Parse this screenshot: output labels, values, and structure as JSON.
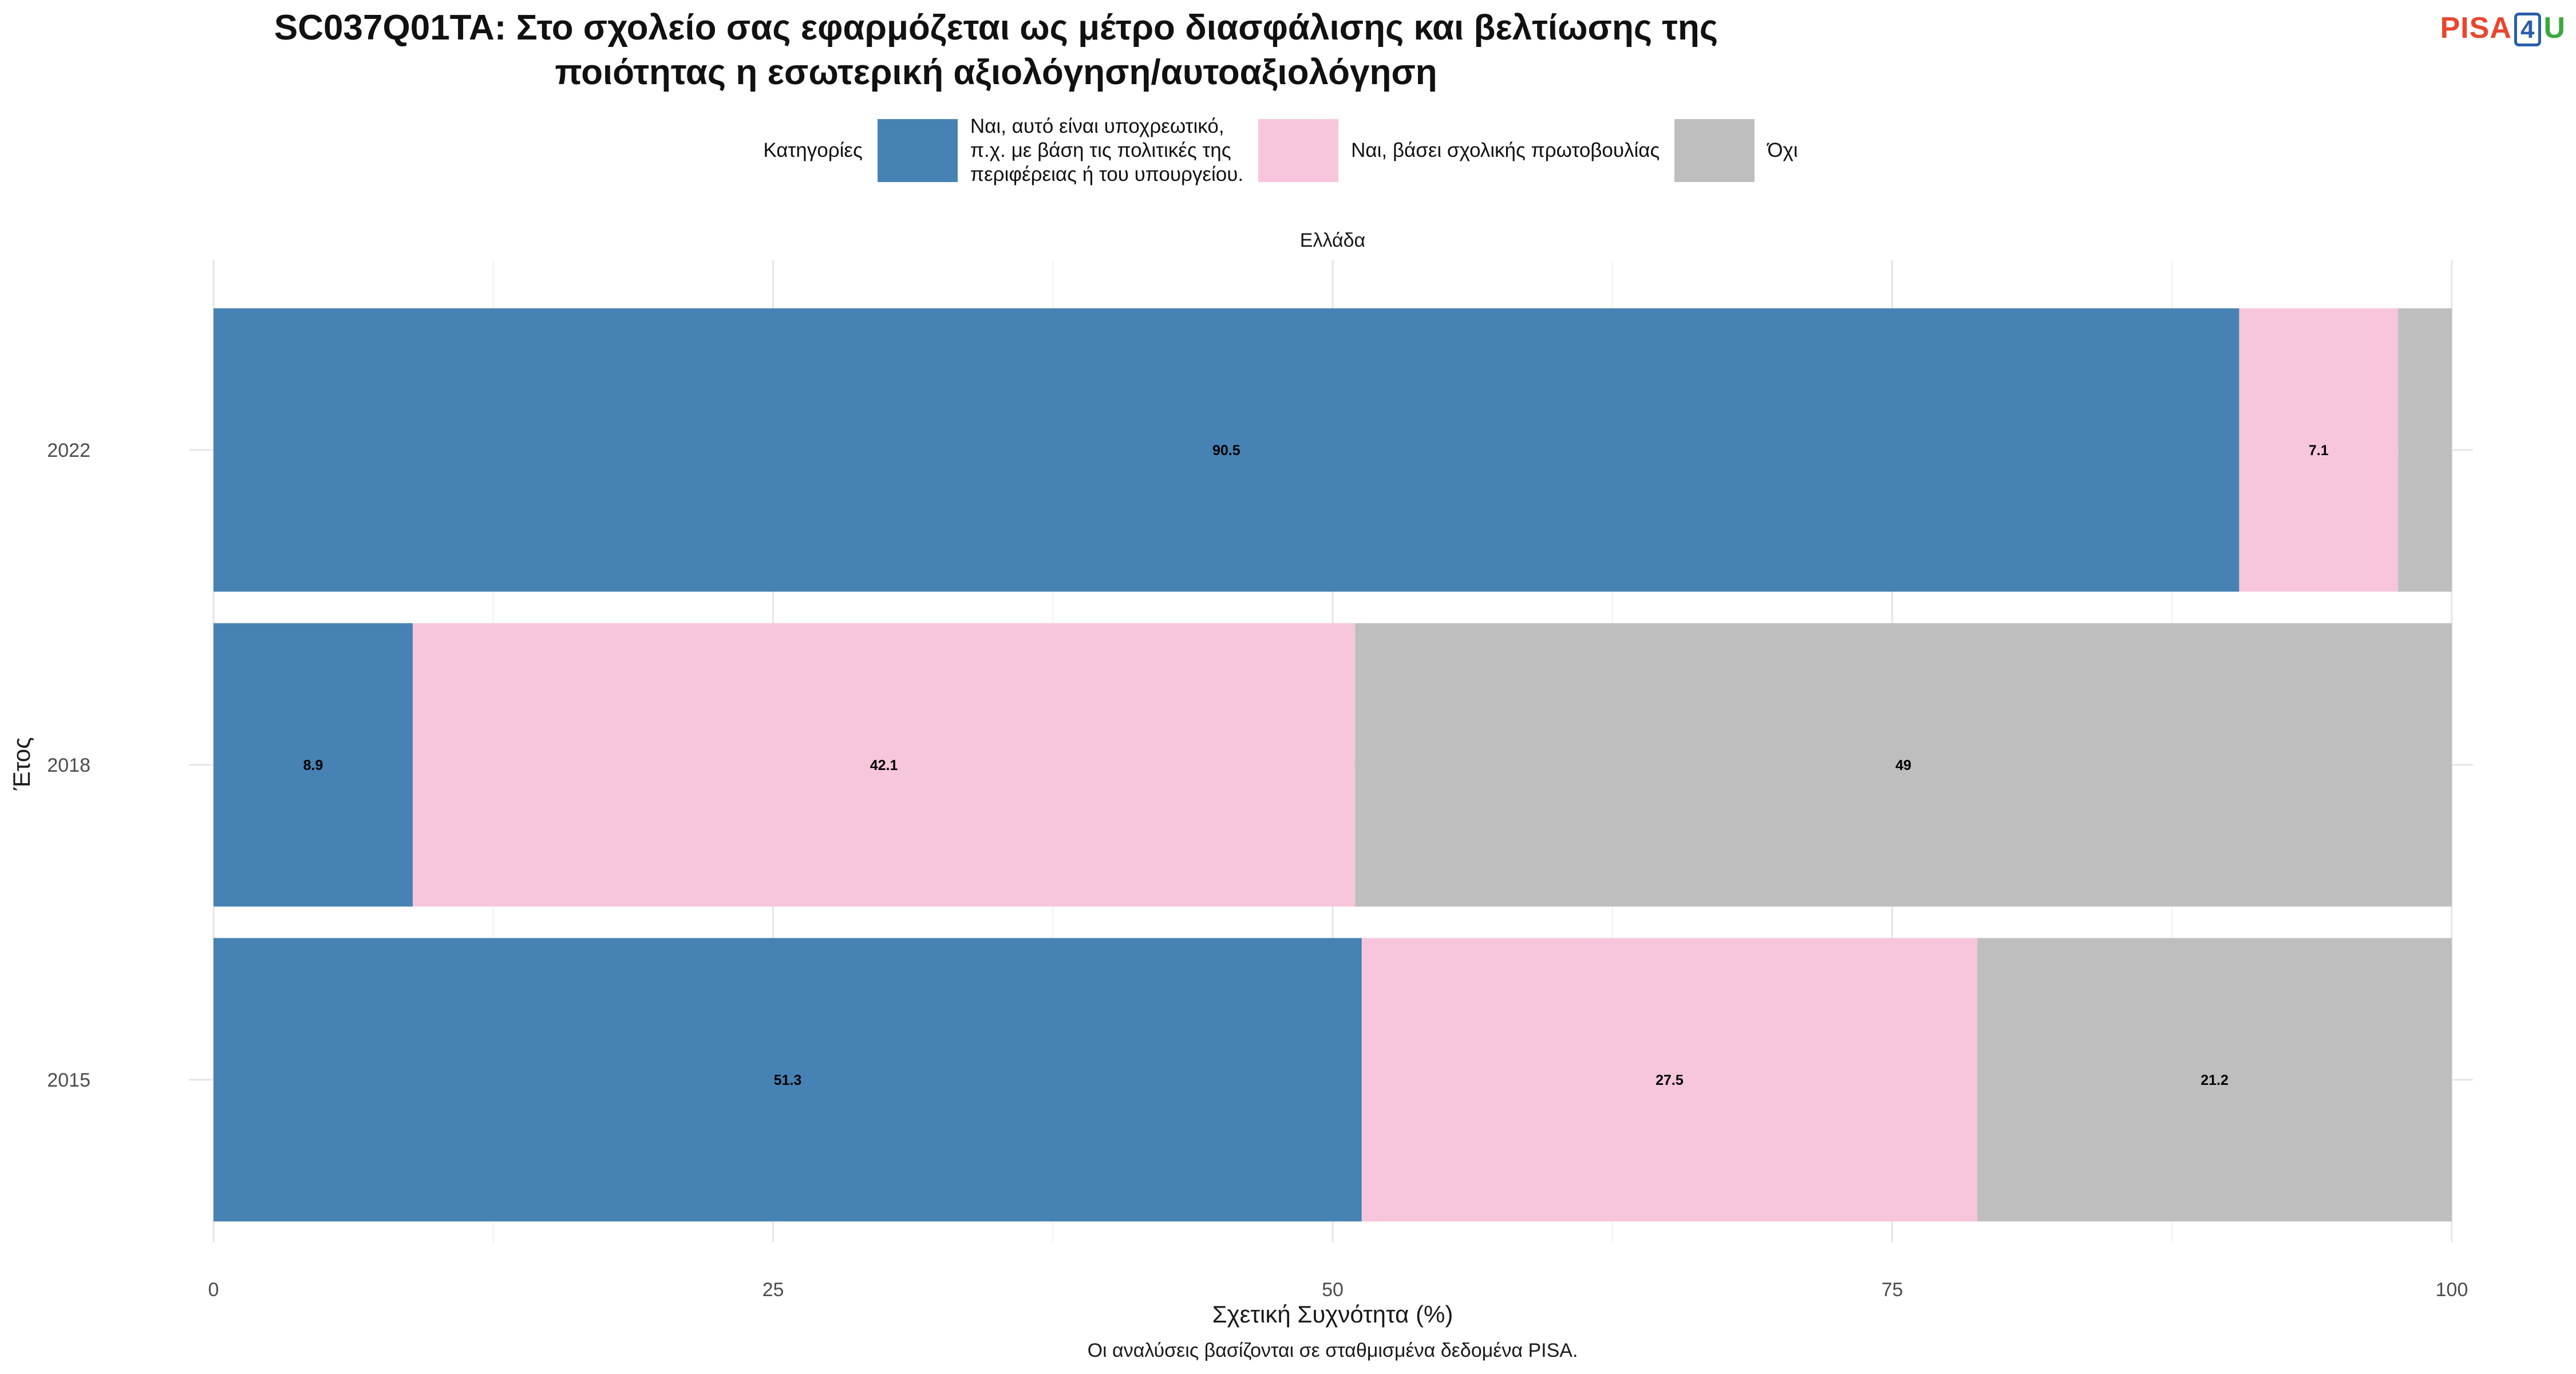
{
  "title_line1": "SC037Q01TA: Στο σχολείο σας εφαρμόζεται ως μέτρο διασφάλισης και βελτίωσης της",
  "title_line2": "ποιότητας η εσωτερική αξιολόγηση/αυτοαξιολόγηση",
  "logo": {
    "part1": "PISA",
    "part2": "4",
    "part3": "U"
  },
  "legend": {
    "title": "Κατηγορίες",
    "items": [
      {
        "lines": [
          "Ναι, αυτό είναι υποχρεωτικό,",
          "π.χ. με βάση τις πολιτικές της",
          "περιφέρειας ή του υπουργείου."
        ],
        "color": "#4682b4"
      },
      {
        "lines": [
          "Ναι, βάσει σχολικής πρωτοβουλίας"
        ],
        "color": "#f7c6dc"
      },
      {
        "lines": [
          "Όχι"
        ],
        "color": "#bebebe"
      }
    ]
  },
  "caption": "Οι αναλύσεις βασίζονται σε σταθμισμένα δεδομένα PISA.",
  "chart_data": {
    "type": "bar",
    "orientation": "horizontal",
    "stacked": true,
    "facet_label": "Ελλάδα",
    "categories": [
      "2022",
      "2018",
      "2015"
    ],
    "series": [
      {
        "name": "Ναι, αυτό είναι υποχρεωτικό, π.χ. με βάση τις πολιτικές της περιφέρειας ή του υπουργείου.",
        "color": "#4682b4",
        "values": [
          90.5,
          8.9,
          51.3
        ],
        "labels": [
          "90.5",
          "8.9",
          "51.3"
        ]
      },
      {
        "name": "Ναι, βάσει σχολικής πρωτοβουλίας",
        "color": "#f7c6dc",
        "values": [
          7.1,
          42.1,
          27.5
        ],
        "labels": [
          "7.1",
          "42.1",
          "27.5"
        ]
      },
      {
        "name": "Όχι",
        "color": "#bebebe",
        "values": [
          2.4,
          49.0,
          21.2
        ],
        "labels": [
          "",
          "49",
          "21.2"
        ]
      }
    ],
    "xlabel": "Σχετική Συχνότητα (%)",
    "ylabel": "Έτος",
    "xlim": [
      0,
      100
    ],
    "xticks": [
      0,
      25,
      50,
      75,
      100
    ],
    "xtick_labels": [
      "0",
      "25",
      "50",
      "75",
      "100"
    ],
    "grid": true,
    "legend_position": "top"
  }
}
